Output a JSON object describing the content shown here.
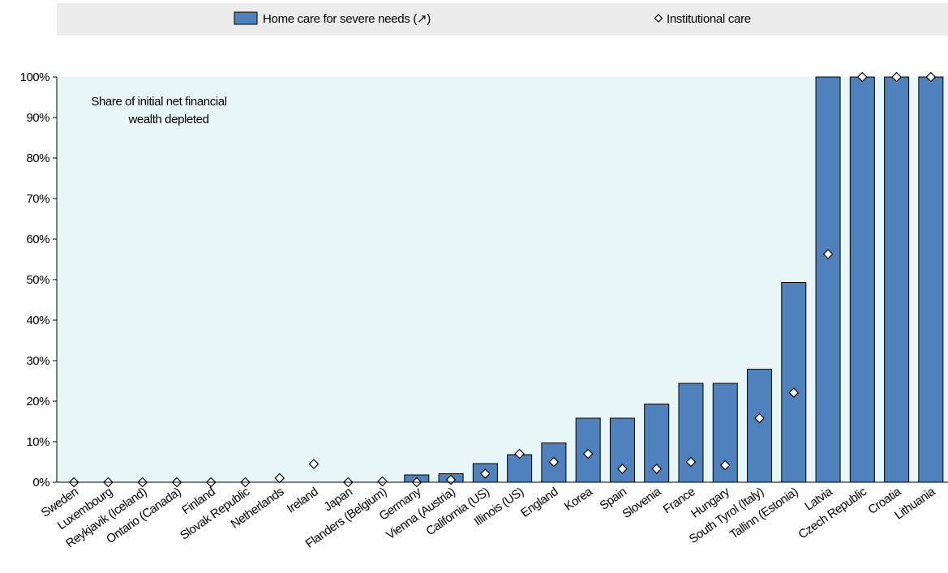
{
  "chart_data": {
    "type": "bar",
    "categories": [
      "Sweden",
      "Luxembourg",
      "Reykjavik (Iceland)",
      "Ontario (Canada)",
      "Finland",
      "Slovak Republic",
      "Netherlands",
      "Ireland",
      "Japan",
      "Flanders (Belgium)",
      "Germany",
      "Vienna (Austria)",
      "California (US)",
      "Illinois (US)",
      "England",
      "Korea",
      "Spain",
      "Slovenia",
      "France",
      "Hungary",
      "South Tyrol (Italy)",
      "Tallinn (Estonia)",
      "Latvia",
      "Czech Republic",
      "Croatia",
      "Lithuania"
    ],
    "series": [
      {
        "name": "Home care for severe needs (↗)",
        "style": "bar",
        "color": "#4f81bd",
        "values": [
          0,
          0,
          0,
          0,
          0,
          0,
          0,
          0,
          0,
          0,
          1.8,
          2.1,
          4.6,
          6.8,
          9.7,
          15.8,
          15.8,
          19.3,
          24.4,
          24.4,
          27.9,
          49.3,
          100,
          100,
          100,
          100
        ]
      },
      {
        "name": "Institutional care",
        "style": "marker-diamond",
        "color": "#ffffff",
        "values": [
          0,
          0,
          0,
          0,
          0,
          0,
          1.0,
          4.5,
          0,
          0.2,
          0,
          0.6,
          2.1,
          7.0,
          5.0,
          7.0,
          3.3,
          3.3,
          5.0,
          4.2,
          15.8,
          22.1,
          56.3,
          100,
          100,
          100
        ]
      }
    ],
    "annotation": "Share of initial net financial wealth depleted",
    "ylim": [
      0,
      100
    ],
    "yticks": [
      "0%",
      "10%",
      "20%",
      "30%",
      "40%",
      "50%",
      "60%",
      "70%",
      "80%",
      "90%",
      "100%"
    ],
    "xlabel": "",
    "ylabel": "",
    "legend_position": "top",
    "grid": false,
    "plot_background": "#e8f6f8"
  }
}
